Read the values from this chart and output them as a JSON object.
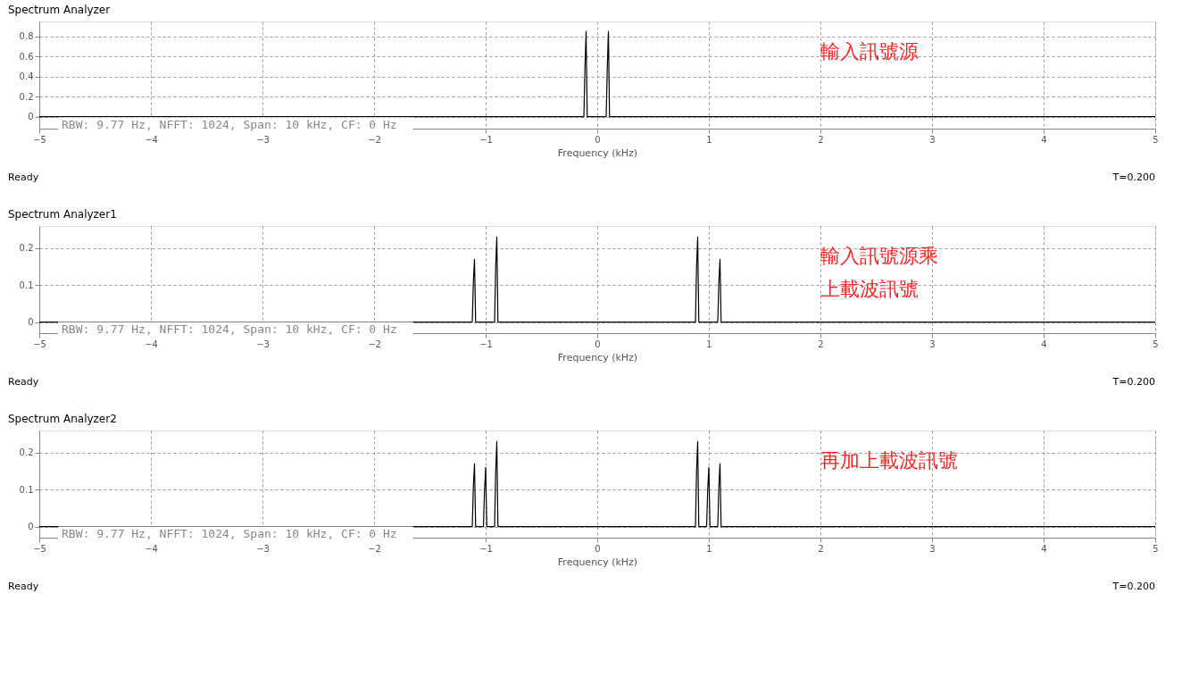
{
  "chart_data": [
    {
      "type": "line",
      "title": "Spectrum Analyzer",
      "xlabel": "Frequency (kHz)",
      "xlim": [
        -5,
        5
      ],
      "xticks": [
        -5,
        -4,
        -3,
        -2,
        -1,
        0,
        1,
        2,
        3,
        4,
        5
      ],
      "ylim": [
        -0.12,
        0.95
      ],
      "yticks": [
        0,
        0.2,
        0.4,
        0.6,
        0.8
      ],
      "grid": true,
      "line_style": "solid",
      "marker": "none",
      "series": [
        {
          "color": "#000000",
          "x": [
            -5,
            -0.12,
            -0.11,
            -0.1,
            -0.09,
            0.08,
            0.09,
            0.1,
            0.11,
            5
          ],
          "values": [
            0,
            0,
            0.49,
            0.85,
            0,
            0,
            0.49,
            0.85,
            0,
            0
          ]
        }
      ],
      "annotations": [
        "輸入訊號源",
        "RBW: 9.77 Hz, NFFT: 1024, Span: 10 kHz, CF: 0 Hz",
        "Ready",
        "T=0.200"
      ]
    },
    {
      "type": "line",
      "title": "Spectrum Analyzer1",
      "xlabel": "Frequency (kHz)",
      "xlim": [
        -5,
        5
      ],
      "xticks": [
        -5,
        -4,
        -3,
        -2,
        -1,
        0,
        1,
        2,
        3,
        4,
        5
      ],
      "ylim": [
        -0.03,
        0.26
      ],
      "yticks": [
        0,
        0.1,
        0.2
      ],
      "grid": true,
      "line_style": "solid",
      "marker": "none",
      "series": [
        {
          "color": "#000000",
          "x": [
            -5,
            -1.12,
            -1.11,
            -1.1,
            -1.09,
            -0.92,
            -0.91,
            -0.9,
            -0.89,
            0.88,
            0.89,
            0.9,
            0.91,
            1.08,
            1.09,
            1.1,
            1.11,
            5
          ],
          "values": [
            0,
            0,
            0.11,
            0.17,
            0,
            0,
            0.15,
            0.23,
            0,
            0,
            0.15,
            0.23,
            0,
            0,
            0.11,
            0.17,
            0,
            0
          ]
        }
      ],
      "annotations": [
        "輸入訊號源乘上載波訊號",
        "RBW: 9.77 Hz, NFFT: 1024, Span: 10 kHz, CF: 0 Hz",
        "Ready",
        "T=0.200"
      ]
    },
    {
      "type": "line",
      "title": "Spectrum Analyzer2",
      "xlabel": "Frequency (kHz)",
      "xlim": [
        -5,
        5
      ],
      "xticks": [
        -5,
        -4,
        -3,
        -2,
        -1,
        0,
        1,
        2,
        3,
        4,
        5
      ],
      "ylim": [
        -0.03,
        0.26
      ],
      "yticks": [
        0,
        0.1,
        0.2
      ],
      "grid": true,
      "line_style": "solid",
      "marker": "none",
      "series": [
        {
          "color": "#000000",
          "x": [
            -5,
            -1.12,
            -1.11,
            -1.1,
            -1.09,
            -1.02,
            -1.01,
            -1.0,
            -0.99,
            -0.92,
            -0.91,
            -0.9,
            -0.89,
            0.88,
            0.89,
            0.9,
            0.91,
            0.98,
            0.99,
            1.0,
            1.01,
            1.08,
            1.09,
            1.1,
            1.11,
            5
          ],
          "values": [
            0,
            0,
            0.11,
            0.17,
            0,
            0,
            0.1,
            0.16,
            0,
            0,
            0.15,
            0.23,
            0,
            0,
            0.15,
            0.23,
            0,
            0,
            0.1,
            0.16,
            0,
            0,
            0.11,
            0.17,
            0,
            0
          ]
        }
      ],
      "annotations": [
        "再加上載波訊號",
        "RBW: 9.77 Hz, NFFT: 1024, Span: 10 kHz, CF: 0 Hz",
        "Ready",
        "T=0.200"
      ]
    }
  ]
}
